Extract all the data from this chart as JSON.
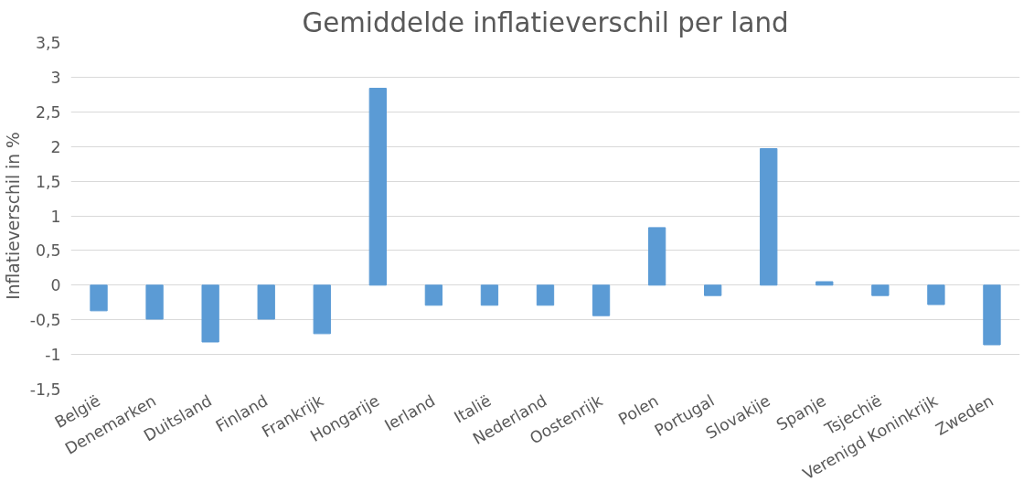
{
  "chart_data": {
    "type": "bar",
    "title": "Gemiddelde inflatieverschil per land",
    "ylabel": "Inflatieverschil in %",
    "categories": [
      "België",
      "Denemarken",
      "Duitsland",
      "Finland",
      "Frankrijk",
      "Hongarije",
      "Ierland",
      "Italië",
      "Nederland",
      "Oostenrijk",
      "Polen",
      "Portugal",
      "Slovakije",
      "Spanje",
      "Tsjechië",
      "Verenigd Koninkrijk",
      "Zweden"
    ],
    "values": [
      -0.37,
      -0.49,
      -0.82,
      -0.49,
      -0.7,
      2.84,
      -0.29,
      -0.29,
      -0.29,
      -0.44,
      0.83,
      -0.15,
      1.97,
      0.05,
      -0.15,
      -0.28,
      -0.86
    ],
    "color": "#5b9bd5",
    "ylim": [
      -1.5,
      3.5
    ],
    "yticks": [
      {
        "value": -1.5,
        "label": "-1,5"
      },
      {
        "value": -1,
        "label": "-1"
      },
      {
        "value": -0.5,
        "label": "-0,5"
      },
      0,
      {
        "value": 0.5,
        "label": "0,5"
      },
      1,
      {
        "value": 1.5,
        "label": "1,5"
      },
      2,
      {
        "value": 2.5,
        "label": "2,5"
      },
      3,
      {
        "value": 3.5,
        "label": "3,5"
      }
    ],
    "grid": "y"
  }
}
